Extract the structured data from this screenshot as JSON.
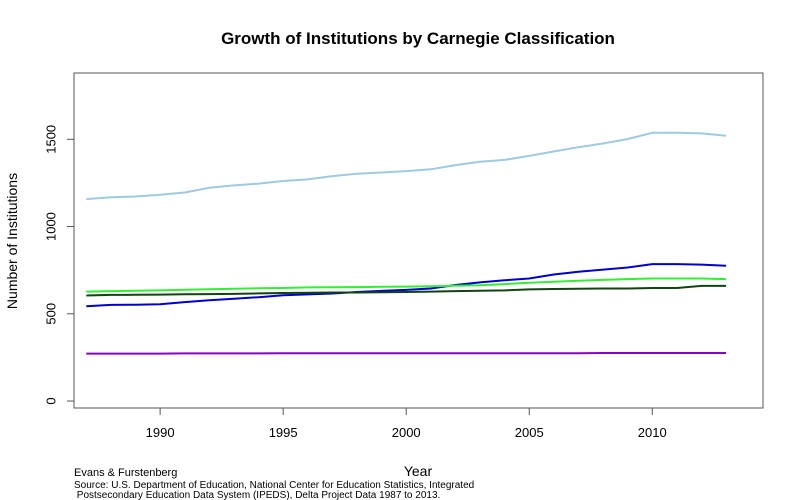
{
  "chart_data": {
    "type": "line",
    "title": "Growth of Institutions by Carnegie Classification",
    "xlabel": "Year",
    "ylabel": "Number of Institutions",
    "xlim": [
      1986.5,
      2014.5
    ],
    "ylim": [
      -40,
      1880
    ],
    "xticks": [
      1990,
      1995,
      2000,
      2005,
      2010
    ],
    "yticks": [
      0,
      500,
      1000,
      1500
    ],
    "grid": false,
    "legend": "none",
    "x": [
      1987,
      1988,
      1989,
      1990,
      1991,
      1992,
      1993,
      1994,
      1995,
      1996,
      1997,
      1998,
      1999,
      2000,
      2001,
      2002,
      2003,
      2004,
      2005,
      2006,
      2007,
      2008,
      2009,
      2010,
      2011,
      2012,
      2013
    ],
    "series": [
      {
        "color": "#9ecae1",
        "values": [
          1157,
          1168,
          1172,
          1182,
          1195,
          1222,
          1236,
          1246,
          1261,
          1270,
          1289,
          1302,
          1310,
          1318,
          1328,
          1352,
          1371,
          1382,
          1405,
          1430,
          1455,
          1476,
          1502,
          1537,
          1537,
          1534,
          1520
        ]
      },
      {
        "color": "#0000cd",
        "values": [
          543,
          551,
          552,
          555,
          567,
          578,
          586,
          595,
          606,
          611,
          616,
          625,
          631,
          637,
          645,
          665,
          680,
          692,
          702,
          725,
          741,
          753,
          765,
          785,
          785,
          782,
          775
        ]
      },
      {
        "color": "#33ee33",
        "values": [
          627,
          630,
          632,
          634,
          638,
          641,
          644,
          646,
          648,
          651,
          652,
          653,
          655,
          656,
          658,
          661,
          664,
          670,
          678,
          684,
          689,
          694,
          699,
          702,
          702,
          702,
          699
        ]
      },
      {
        "color": "#114411",
        "values": [
          605,
          608,
          609,
          610,
          612,
          613,
          614,
          617,
          619,
          621,
          622,
          622,
          623,
          625,
          627,
          630,
          632,
          634,
          640,
          642,
          644,
          645,
          645,
          648,
          648,
          660,
          660
        ]
      },
      {
        "color": "#8a00c8",
        "values": [
          272,
          272,
          272,
          272,
          273,
          273,
          273,
          273,
          274,
          274,
          274,
          274,
          274,
          274,
          274,
          274,
          274,
          274,
          274,
          274,
          274,
          275,
          275,
          275,
          275,
          275,
          275
        ]
      }
    ]
  },
  "credit": "Evans & Furstenberg",
  "source_line1": "Source: U.S. Department of Education, National Center for Education Statistics, Integrated",
  "source_line2": " Postsecondary Education Data System (IPEDS), Delta Project Data 1987 to 2013."
}
